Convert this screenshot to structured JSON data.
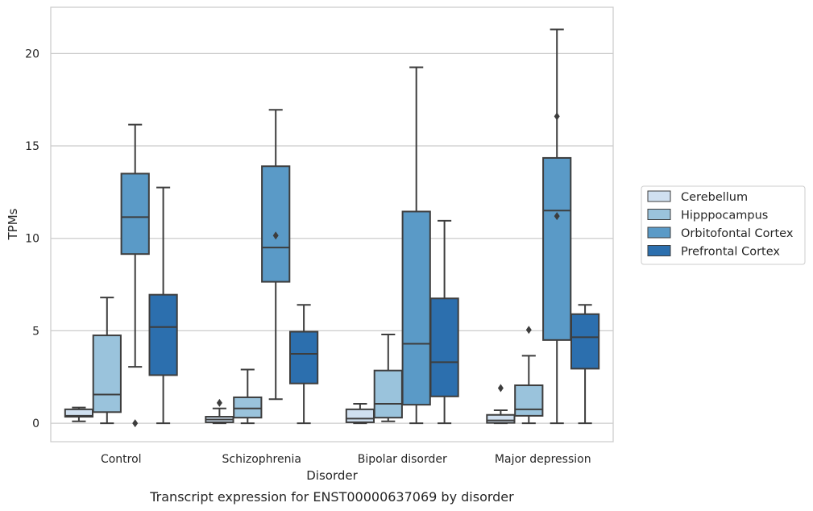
{
  "chart_data": {
    "type": "box",
    "title": "",
    "caption": "Transcript expression for ENST00000637069 by disorder",
    "xlabel": "Disorder",
    "ylabel": "TPMs",
    "ylim": [
      -1.0,
      22.5
    ],
    "yticks": [
      0,
      5,
      10,
      15,
      20
    ],
    "grid": "horizontal",
    "legend_position": "right",
    "categories": [
      "Control",
      "Schizophrenia",
      "Bipolar disorder",
      "Major depression"
    ],
    "series": [
      {
        "name": "Cerebellum",
        "color": "#d0e0f0",
        "boxes": [
          {
            "whislo": 0.1,
            "q1": 0.35,
            "med": 0.4,
            "q3": 0.75,
            "whishi": 0.85,
            "fliers": []
          },
          {
            "whislo": 0.0,
            "q1": 0.05,
            "med": 0.2,
            "q3": 0.35,
            "whishi": 0.8,
            "fliers": [
              1.1
            ]
          },
          {
            "whislo": 0.0,
            "q1": 0.05,
            "med": 0.25,
            "q3": 0.75,
            "whishi": 1.05,
            "fliers": []
          },
          {
            "whislo": 0.0,
            "q1": 0.02,
            "med": 0.15,
            "q3": 0.45,
            "whishi": 0.7,
            "fliers": [
              1.9
            ]
          }
        ]
      },
      {
        "name": "Hipppocampus",
        "color": "#9ac3dc",
        "boxes": [
          {
            "whislo": 0.0,
            "q1": 0.6,
            "med": 1.55,
            "q3": 4.75,
            "whishi": 6.8,
            "fliers": []
          },
          {
            "whislo": 0.0,
            "q1": 0.3,
            "med": 0.8,
            "q3": 1.4,
            "whishi": 2.9,
            "fliers": []
          },
          {
            "whislo": 0.1,
            "q1": 0.3,
            "med": 1.05,
            "q3": 2.85,
            "whishi": 4.8,
            "fliers": []
          },
          {
            "whislo": 0.0,
            "q1": 0.4,
            "med": 0.75,
            "q3": 2.05,
            "whishi": 3.65,
            "fliers": [
              5.05
            ]
          }
        ]
      },
      {
        "name": "Orbitofontal Cortex",
        "color": "#5a9ac7",
        "boxes": [
          {
            "whislo": 3.05,
            "q1": 9.15,
            "med": 11.15,
            "q3": 13.5,
            "whishi": 16.15,
            "fliers": [
              0.0
            ]
          },
          {
            "whislo": 1.3,
            "q1": 7.65,
            "med": 9.5,
            "q3": 13.9,
            "whishi": 16.95,
            "fliers": [
              10.15
            ]
          },
          {
            "whislo": 0.0,
            "q1": 1.0,
            "med": 4.3,
            "q3": 11.45,
            "whishi": 19.25,
            "fliers": []
          },
          {
            "whislo": 0.0,
            "q1": 4.5,
            "med": 11.5,
            "q3": 14.35,
            "whishi": 21.3,
            "fliers": [
              11.2,
              16.6
            ]
          }
        ]
      },
      {
        "name": "Prefrontal Cortex",
        "color": "#2c6fae",
        "boxes": [
          {
            "whislo": 0.0,
            "q1": 2.6,
            "med": 5.2,
            "q3": 6.95,
            "whishi": 12.75,
            "fliers": []
          },
          {
            "whislo": 0.0,
            "q1": 2.15,
            "med": 3.75,
            "q3": 4.95,
            "whishi": 6.4,
            "fliers": []
          },
          {
            "whislo": 0.0,
            "q1": 1.45,
            "med": 3.3,
            "q3": 6.75,
            "whishi": 10.95,
            "fliers": []
          },
          {
            "whislo": 0.0,
            "q1": 2.95,
            "med": 4.65,
            "q3": 5.9,
            "whishi": 6.4,
            "fliers": []
          }
        ]
      }
    ]
  }
}
